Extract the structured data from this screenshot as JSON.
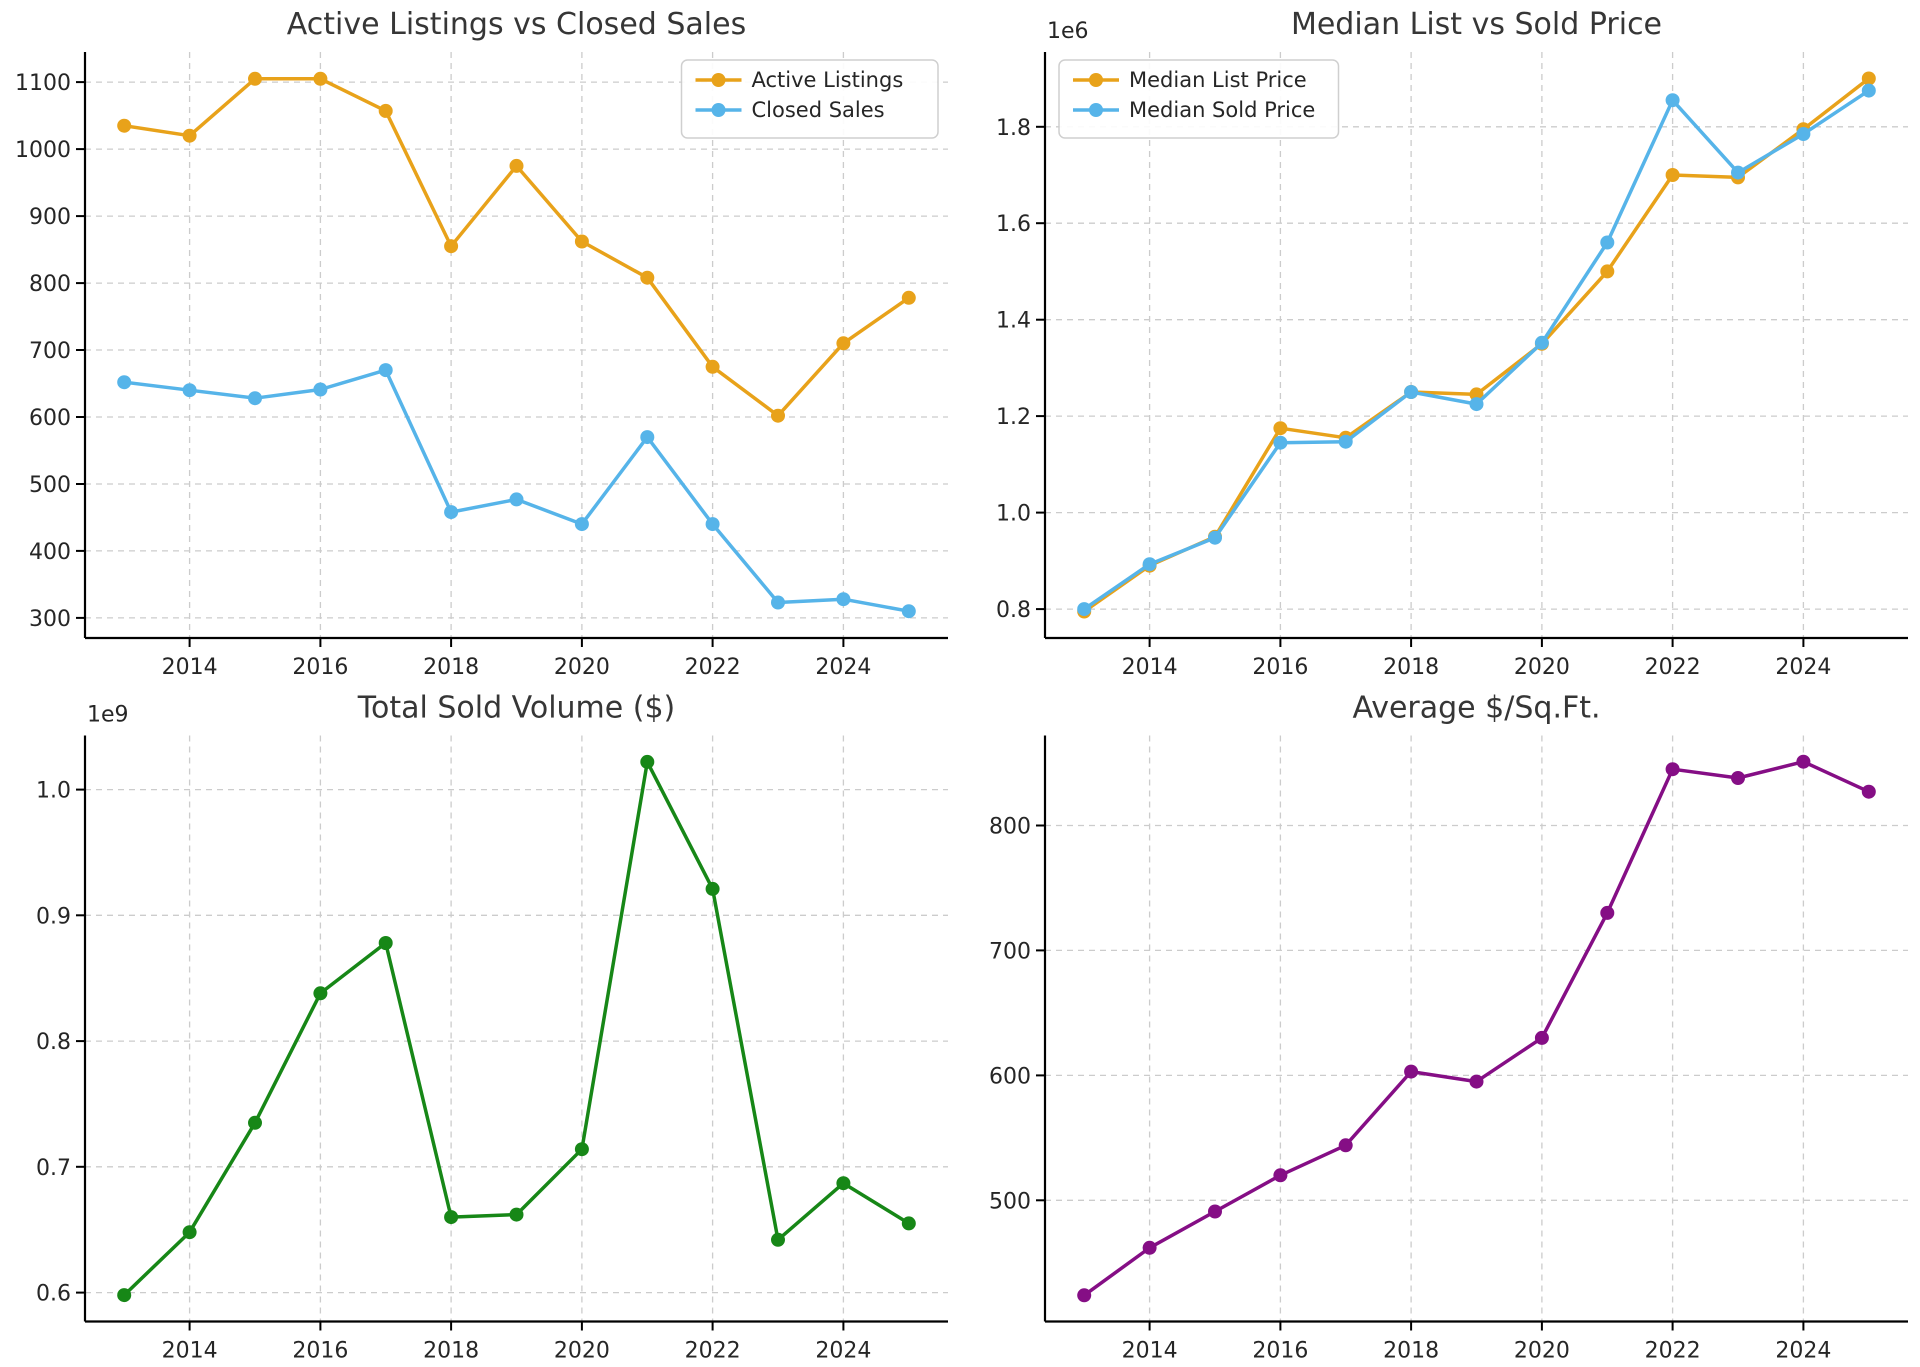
{
  "figure": {
    "background": "#ffffff",
    "colors": {
      "orange": "#E8A21A",
      "sky_blue": "#56B4E9",
      "green": "#178717",
      "purple": "#850E85",
      "grid": "#cccccc",
      "text": "#262626"
    }
  },
  "chart_data": [
    {
      "type": "line",
      "title": "Active Listings vs Closed Sales",
      "x": [
        2013,
        2014,
        2015,
        2016,
        2017,
        2018,
        2019,
        2020,
        2021,
        2022,
        2023,
        2024,
        2025
      ],
      "xlim": [
        2012.4,
        2025.6
      ],
      "xticks": [
        2014,
        2016,
        2018,
        2020,
        2022,
        2024
      ],
      "xtick_labels": [
        "2014",
        "2016",
        "2018",
        "2020",
        "2022",
        "2024"
      ],
      "ylim": [
        270,
        1145
      ],
      "yticks": [
        300,
        400,
        500,
        600,
        700,
        800,
        900,
        1000,
        1100
      ],
      "ytick_labels": [
        "300",
        "400",
        "500",
        "600",
        "700",
        "800",
        "900",
        "1000",
        "1100"
      ],
      "offset_label": "",
      "grid": true,
      "legend": {
        "loc": "upper right"
      },
      "series": [
        {
          "name": "Active Listings",
          "color": "#E8A21A",
          "values": [
            1035,
            1020,
            1105,
            1105,
            1057,
            855,
            975,
            862,
            808,
            675,
            602,
            710,
            778
          ]
        },
        {
          "name": "Closed Sales",
          "color": "#56B4E9",
          "values": [
            652,
            640,
            628,
            641,
            670,
            458,
            477,
            440,
            570,
            440,
            323,
            328,
            310
          ]
        }
      ]
    },
    {
      "type": "line",
      "title": "Median List vs Sold Price",
      "x": [
        2013,
        2014,
        2015,
        2016,
        2017,
        2018,
        2019,
        2020,
        2021,
        2022,
        2023,
        2024,
        2025
      ],
      "xlim": [
        2012.4,
        2025.6
      ],
      "xticks": [
        2014,
        2016,
        2018,
        2020,
        2022,
        2024
      ],
      "xtick_labels": [
        "2014",
        "2016",
        "2018",
        "2020",
        "2022",
        "2024"
      ],
      "ylim": [
        740000,
        1955000
      ],
      "yticks": [
        800000,
        1000000,
        1200000,
        1400000,
        1600000,
        1800000
      ],
      "ytick_labels": [
        "0.8",
        "1.0",
        "1.2",
        "1.4",
        "1.6",
        "1.8"
      ],
      "offset_label": "1e6",
      "grid": true,
      "legend": {
        "loc": "upper left"
      },
      "series": [
        {
          "name": "Median List Price",
          "color": "#E8A21A",
          "values": [
            795000,
            890000,
            950000,
            1175000,
            1155000,
            1250000,
            1245000,
            1350000,
            1500000,
            1700000,
            1695000,
            1795000,
            1900000
          ]
        },
        {
          "name": "Median Sold Price",
          "color": "#56B4E9",
          "values": [
            800000,
            893000,
            948000,
            1145000,
            1147000,
            1250000,
            1225000,
            1352000,
            1560000,
            1855000,
            1705000,
            1785000,
            1875000
          ]
        }
      ]
    },
    {
      "type": "line",
      "title": "Total Sold Volume ($)",
      "x": [
        2013,
        2014,
        2015,
        2016,
        2017,
        2018,
        2019,
        2020,
        2021,
        2022,
        2023,
        2024,
        2025
      ],
      "xlim": [
        2012.4,
        2025.6
      ],
      "xticks": [
        2014,
        2016,
        2018,
        2020,
        2022,
        2024
      ],
      "xtick_labels": [
        "2014",
        "2016",
        "2018",
        "2020",
        "2022",
        "2024"
      ],
      "ylim": [
        577000000,
        1043000000
      ],
      "yticks": [
        600000000,
        700000000,
        800000000,
        900000000,
        1000000000
      ],
      "ytick_labels": [
        "0.6",
        "0.7",
        "0.8",
        "0.9",
        "1.0"
      ],
      "offset_label": "1e9",
      "grid": true,
      "legend": null,
      "series": [
        {
          "name": "Total Sold Volume",
          "color": "#178717",
          "values": [
            598000000,
            648000000,
            735000000,
            838000000,
            878000000,
            660000000,
            662000000,
            714000000,
            1022000000,
            921000000,
            642000000,
            687000000,
            655000000
          ]
        }
      ]
    },
    {
      "type": "line",
      "title": "Average $/Sq.Ft.",
      "x": [
        2013,
        2014,
        2015,
        2016,
        2017,
        2018,
        2019,
        2020,
        2021,
        2022,
        2023,
        2024,
        2025
      ],
      "xlim": [
        2012.4,
        2025.6
      ],
      "xticks": [
        2014,
        2016,
        2018,
        2020,
        2022,
        2024
      ],
      "xtick_labels": [
        "2014",
        "2016",
        "2018",
        "2020",
        "2022",
        "2024"
      ],
      "ylim": [
        403,
        872
      ],
      "yticks": [
        500,
        600,
        700,
        800
      ],
      "ytick_labels": [
        "500",
        "600",
        "700",
        "800"
      ],
      "offset_label": "",
      "grid": true,
      "legend": null,
      "series": [
        {
          "name": "Average $/Sq.Ft.",
          "color": "#850E85",
          "values": [
            424,
            462,
            491,
            520,
            544,
            603,
            595,
            630,
            730,
            845,
            838,
            851,
            827
          ]
        }
      ]
    }
  ]
}
